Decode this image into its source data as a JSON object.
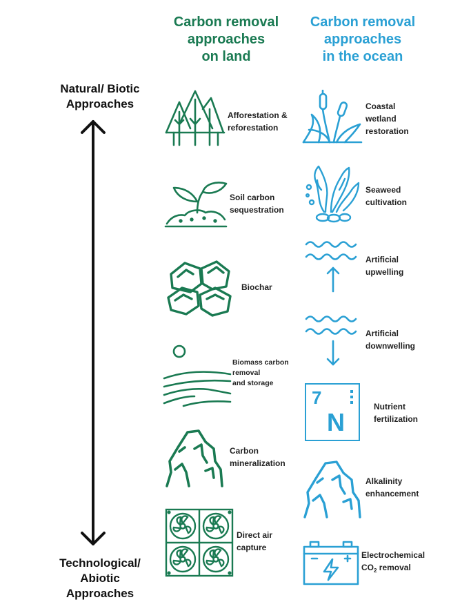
{
  "headers": {
    "land": [
      "Carbon removal",
      "approaches",
      "on land"
    ],
    "ocean": [
      "Carbon removal",
      "approaches",
      "in the ocean"
    ]
  },
  "axis": {
    "top": [
      "Natural/ Biotic",
      "Approaches"
    ],
    "bottom": [
      "Technological/",
      "Abiotic",
      "Approaches"
    ]
  },
  "land_items": [
    {
      "lines": [
        "Afforestation &",
        "reforestation"
      ],
      "icon": "forest-icon"
    },
    {
      "lines": [
        "Soil carbon",
        "sequestration"
      ],
      "icon": "seedling-icon"
    },
    {
      "lines": [
        "Biochar"
      ],
      "icon": "biochar-rocks-icon"
    },
    {
      "lines": [
        "Biomass carbon",
        "removal",
        "and storage"
      ],
      "icon": "fields-sun-icon"
    },
    {
      "lines": [
        "Carbon",
        "mineralization"
      ],
      "icon": "rock-icon"
    },
    {
      "lines": [
        "Direct air",
        "capture"
      ],
      "icon": "fans-icon"
    }
  ],
  "ocean_items": [
    {
      "lines": [
        "Coastal",
        "wetland",
        "restoration"
      ],
      "icon": "cattail-icon"
    },
    {
      "lines": [
        "Seaweed",
        "cultivation"
      ],
      "icon": "seaweed-icon"
    },
    {
      "lines": [
        "Artificial",
        "upwelling"
      ],
      "icon": "waves-up-arrow-icon"
    },
    {
      "lines": [
        "Artificial",
        "downwelling"
      ],
      "icon": "waves-down-arrow-icon"
    },
    {
      "lines": [
        "Nutrient",
        "fertilization"
      ],
      "icon": "nitrogen-element-icon"
    },
    {
      "lines": [
        "Alkalinity",
        "enhancement"
      ],
      "icon": "rock-icon"
    },
    {
      "lines": [
        "Electrochemical",
        "CO",
        "2",
        " removal"
      ],
      "icon": "battery-icon"
    }
  ],
  "element_tile": {
    "number": "7",
    "symbol": "N"
  },
  "colors": {
    "land": "#1a7a52",
    "ocean": "#2aa0d4",
    "axis": "#111111"
  }
}
